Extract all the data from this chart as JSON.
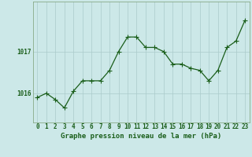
{
  "x": [
    0,
    1,
    2,
    3,
    4,
    5,
    6,
    7,
    8,
    9,
    10,
    11,
    12,
    13,
    14,
    15,
    16,
    17,
    18,
    19,
    20,
    21,
    22,
    23
  ],
  "y": [
    1015.9,
    1016.0,
    1015.85,
    1015.65,
    1016.05,
    1016.3,
    1016.3,
    1016.3,
    1016.55,
    1017.0,
    1017.35,
    1017.35,
    1017.1,
    1017.1,
    1017.0,
    1016.7,
    1016.7,
    1016.6,
    1016.55,
    1016.3,
    1016.55,
    1017.1,
    1017.25,
    1017.75
  ],
  "line_color": "#1a5e1a",
  "marker_color": "#1a5e1a",
  "bg_color": "#cce8e8",
  "grid_color": "#aacaca",
  "xlabel": "Graphe pression niveau de la mer (hPa)",
  "tick_label_color": "#1a5e1a",
  "ytick_labels": [
    "1016",
    "1017"
  ],
  "ytick_values": [
    1016,
    1017
  ],
  "ylim": [
    1015.3,
    1018.2
  ],
  "xlim": [
    -0.5,
    23.5
  ],
  "label_fontsize": 5.5,
  "xlabel_fontsize": 6.5,
  "marker_size": 2.5,
  "linewidth": 0.9
}
